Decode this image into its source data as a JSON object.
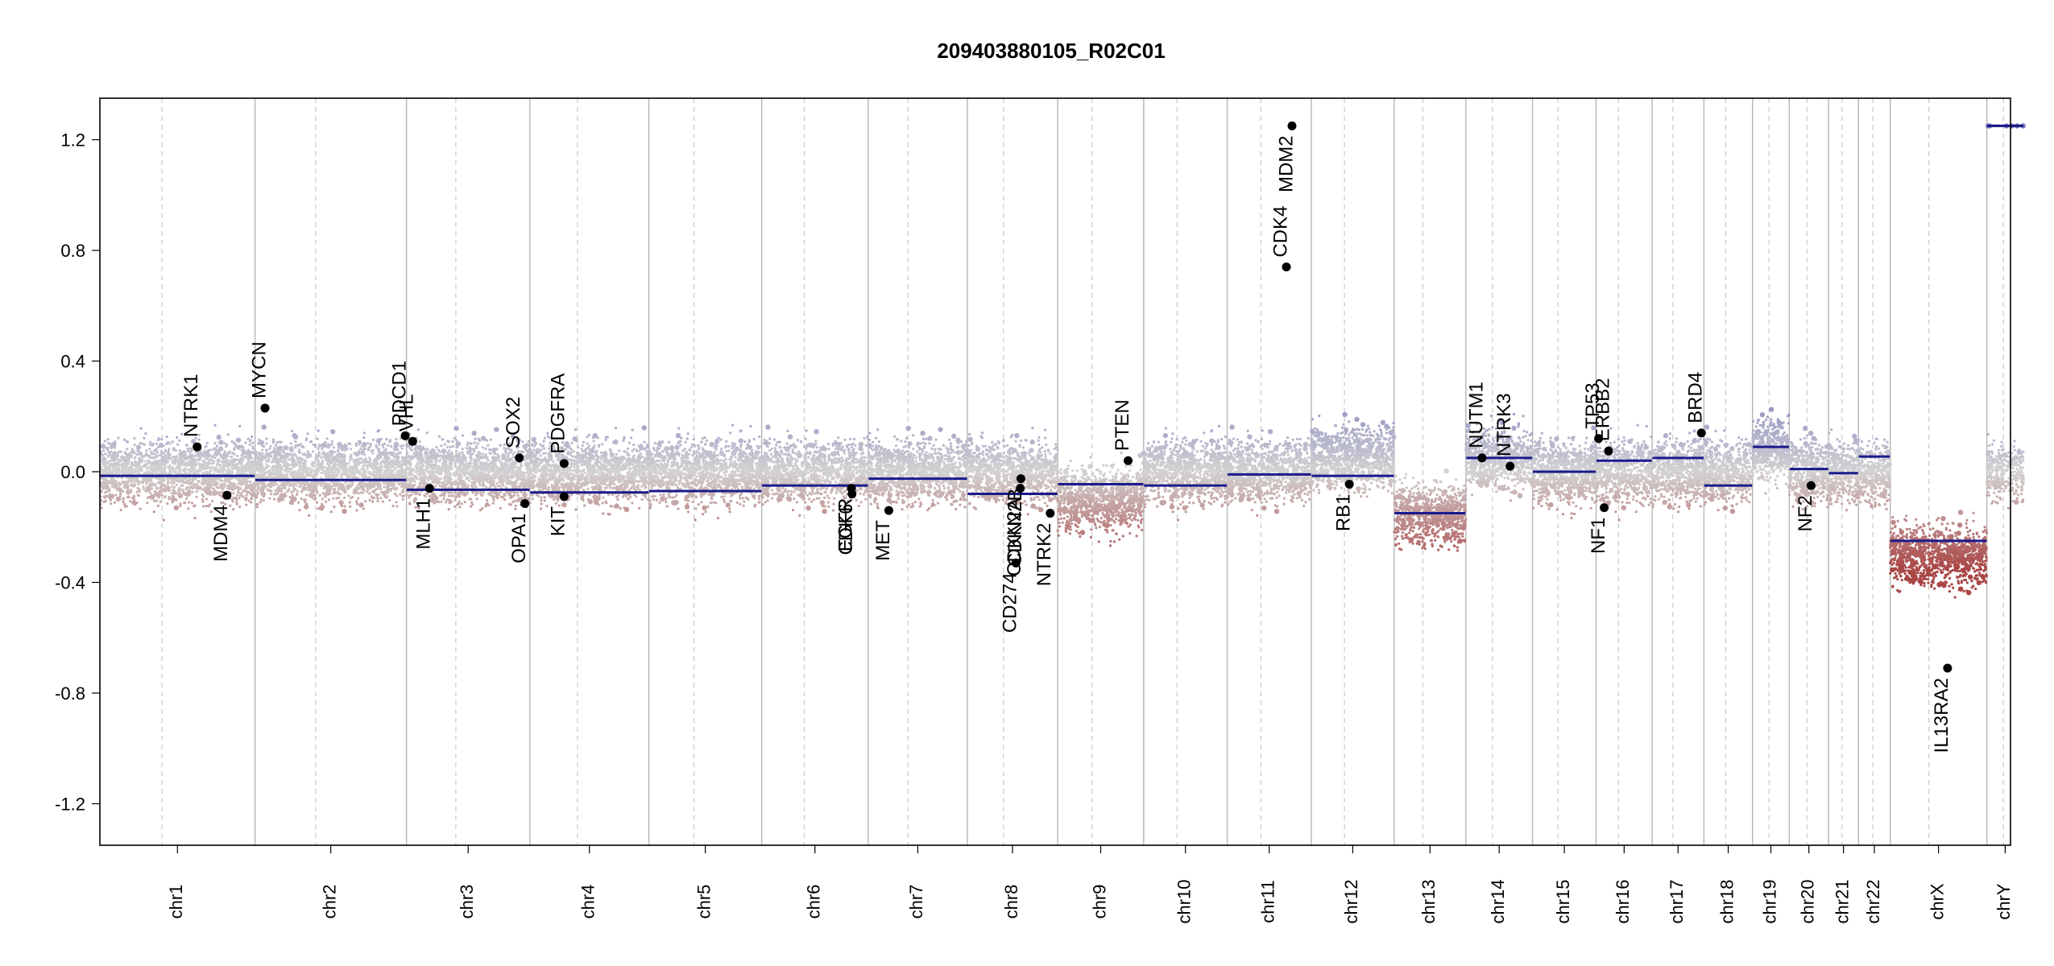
{
  "chart_data": {
    "type": "scatter",
    "title": "209403880105_R02C01",
    "xlabel": "",
    "ylabel": "",
    "ylim": [
      -1.35,
      1.35
    ],
    "y_ticks": [
      1.2,
      0.8,
      0.4,
      0.0,
      -0.4,
      -0.8,
      -1.2
    ],
    "y_tick_labels": [
      "1.2",
      "0.8",
      "0.4",
      "0.0",
      "-0.4",
      "-0.8",
      "-1.2"
    ],
    "x_unit": "Mb (cumulative genome position)",
    "xlim": [
      0,
      3066
    ],
    "chromosomes": [
      {
        "name": "chr1",
        "length": 249,
        "seg": [
          -0.015
        ],
        "cn": 0
      },
      {
        "name": "chr2",
        "length": 243,
        "seg": [
          -0.03
        ],
        "cn": 0
      },
      {
        "name": "chr3",
        "length": 198,
        "seg": [
          -0.065
        ],
        "cn": 0
      },
      {
        "name": "chr4",
        "length": 191,
        "seg": [
          -0.075
        ],
        "cn": 0
      },
      {
        "name": "chr5",
        "length": 181,
        "seg": [
          -0.07
        ],
        "cn": 0
      },
      {
        "name": "chr6",
        "length": 171,
        "seg": [
          -0.05
        ],
        "cn": 0
      },
      {
        "name": "chr7",
        "length": 159,
        "seg": [
          -0.025
        ],
        "cn": 0
      },
      {
        "name": "chr8",
        "length": 145,
        "seg": [
          -0.08
        ],
        "cn": 0
      },
      {
        "name": "chr9",
        "length": 138,
        "seg": [
          -0.045
        ],
        "cn": -0.1
      },
      {
        "name": "chr10",
        "length": 134,
        "seg": [
          -0.05
        ],
        "cn": 0
      },
      {
        "name": "chr11",
        "length": 135,
        "seg": [
          -0.01
        ],
        "cn": 0
      },
      {
        "name": "chr12",
        "length": 133,
        "seg": [
          -0.015
        ],
        "cn": 0.05
      },
      {
        "name": "chr13",
        "length": 115,
        "seg": [
          -0.15
        ],
        "cn": -0.15
      },
      {
        "name": "chr14",
        "length": 107,
        "seg": [
          0.05
        ],
        "cn": 0.05
      },
      {
        "name": "chr15",
        "length": 102,
        "seg": [
          0.0
        ],
        "cn": 0
      },
      {
        "name": "chr16",
        "length": 90,
        "seg": [
          0.04
        ],
        "cn": 0
      },
      {
        "name": "chr17",
        "length": 83,
        "seg": [
          0.05
        ],
        "cn": 0
      },
      {
        "name": "chr18",
        "length": 78,
        "seg": [
          -0.05
        ],
        "cn": 0
      },
      {
        "name": "chr19",
        "length": 59,
        "seg": [
          0.09
        ],
        "cn": 0.08
      },
      {
        "name": "chr20",
        "length": 63,
        "seg": [
          0.01
        ],
        "cn": 0
      },
      {
        "name": "chr21",
        "length": 48,
        "seg": [
          -0.005
        ],
        "cn": 0
      },
      {
        "name": "chr22",
        "length": 51,
        "seg": [
          0.055
        ],
        "cn": 0
      },
      {
        "name": "chrX",
        "length": 155,
        "seg": [
          -0.25
        ],
        "cn": -0.3
      },
      {
        "name": "chrY",
        "length": 59,
        "seg": [
          1.25
        ],
        "cn": 0
      }
    ],
    "genes": [
      {
        "label": "NTRK1",
        "x": 156,
        "y": 0.09,
        "side": "up"
      },
      {
        "label": "MDM4",
        "x": 204,
        "y": -0.085,
        "side": "down"
      },
      {
        "label": "MYCN",
        "x": 265,
        "y": 0.23,
        "side": "up"
      },
      {
        "label": "PDCD1",
        "x": 490,
        "y": 0.13,
        "side": "up"
      },
      {
        "label": "VHL",
        "x": 502,
        "y": 0.11,
        "side": "up"
      },
      {
        "label": "MLH1",
        "x": 529,
        "y": -0.06,
        "side": "down"
      },
      {
        "label": "SOX2",
        "x": 673,
        "y": 0.05,
        "side": "up"
      },
      {
        "label": "OPA1",
        "x": 682,
        "y": -0.115,
        "side": "down"
      },
      {
        "label": "PDGFRA",
        "x": 745,
        "y": 0.03,
        "side": "up"
      },
      {
        "label": "KIT",
        "x": 745,
        "y": -0.09,
        "side": "down"
      },
      {
        "label": "EGFR",
        "x": 1206,
        "y": -0.06,
        "side": "down"
      },
      {
        "label": "CDK6",
        "x": 1207,
        "y": -0.08,
        "side": "down"
      },
      {
        "label": "MET",
        "x": 1266,
        "y": -0.14,
        "side": "down"
      },
      {
        "label": "CD274",
        "x": 1470,
        "y": -0.33,
        "side": "down"
      },
      {
        "label": "CDKN2A",
        "x": 1477,
        "y": -0.06,
        "side": "down"
      },
      {
        "label": "CDKN2B",
        "x": 1478,
        "y": -0.025,
        "side": "down"
      },
      {
        "label": "NTRK2",
        "x": 1525,
        "y": -0.15,
        "side": "down"
      },
      {
        "label": "PTEN",
        "x": 1650,
        "y": 0.04,
        "side": "up"
      },
      {
        "label": "CDK4",
        "x": 1904,
        "y": 0.74,
        "side": "up"
      },
      {
        "label": "MDM2",
        "x": 1913,
        "y": 1.25,
        "side": "down"
      },
      {
        "label": "RB1",
        "x": 2005,
        "y": -0.045,
        "side": "down"
      },
      {
        "label": "NUTM1",
        "x": 2218,
        "y": 0.05,
        "side": "up"
      },
      {
        "label": "NTRK3",
        "x": 2263,
        "y": 0.02,
        "side": "up"
      },
      {
        "label": "TP53",
        "x": 2405,
        "y": 0.12,
        "side": "up"
      },
      {
        "label": "ERBB2",
        "x": 2421,
        "y": 0.075,
        "side": "up"
      },
      {
        "label": "NF1",
        "x": 2414,
        "y": -0.13,
        "side": "down"
      },
      {
        "label": "BRD4",
        "x": 2570,
        "y": 0.14,
        "side": "up"
      },
      {
        "label": "NF2",
        "x": 2746,
        "y": -0.05,
        "side": "down"
      },
      {
        "label": "IL13RA2",
        "x": 2965,
        "y": -0.71,
        "side": "down"
      }
    ]
  }
}
